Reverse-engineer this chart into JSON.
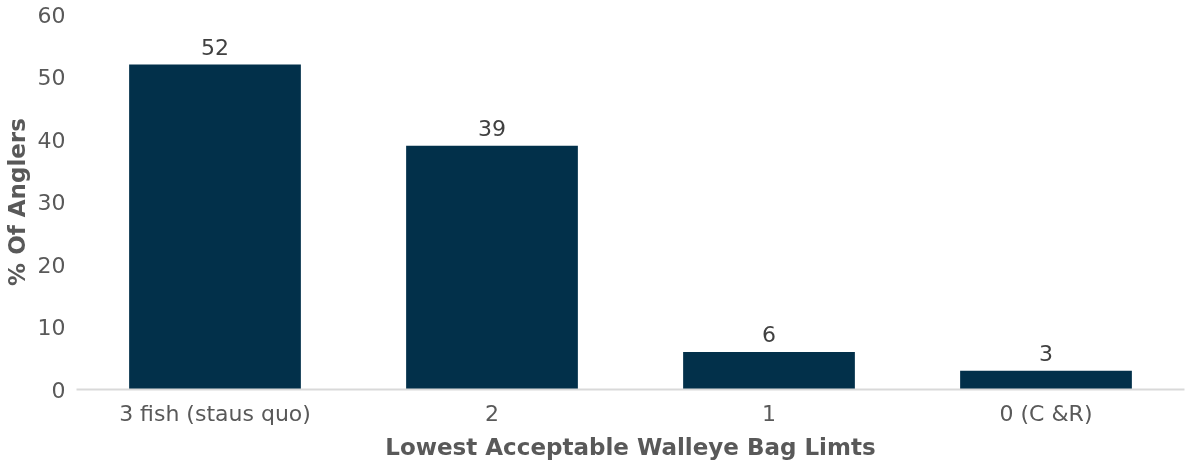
{
  "chart_data": {
    "type": "bar",
    "xlabel": "Lowest Acceptable Walleye Bag Limts",
    "ylabel": "% Of Anglers",
    "categories": [
      "3 fish (staus quo)",
      "2",
      "1",
      "0 (C &R)"
    ],
    "values": [
      52,
      39,
      6,
      3
    ],
    "color": "#02304a",
    "ylim": [
      0,
      60
    ],
    "yticks": [
      0,
      10,
      20,
      30,
      40,
      50,
      60
    ],
    "grid": false,
    "data_labels": true
  }
}
